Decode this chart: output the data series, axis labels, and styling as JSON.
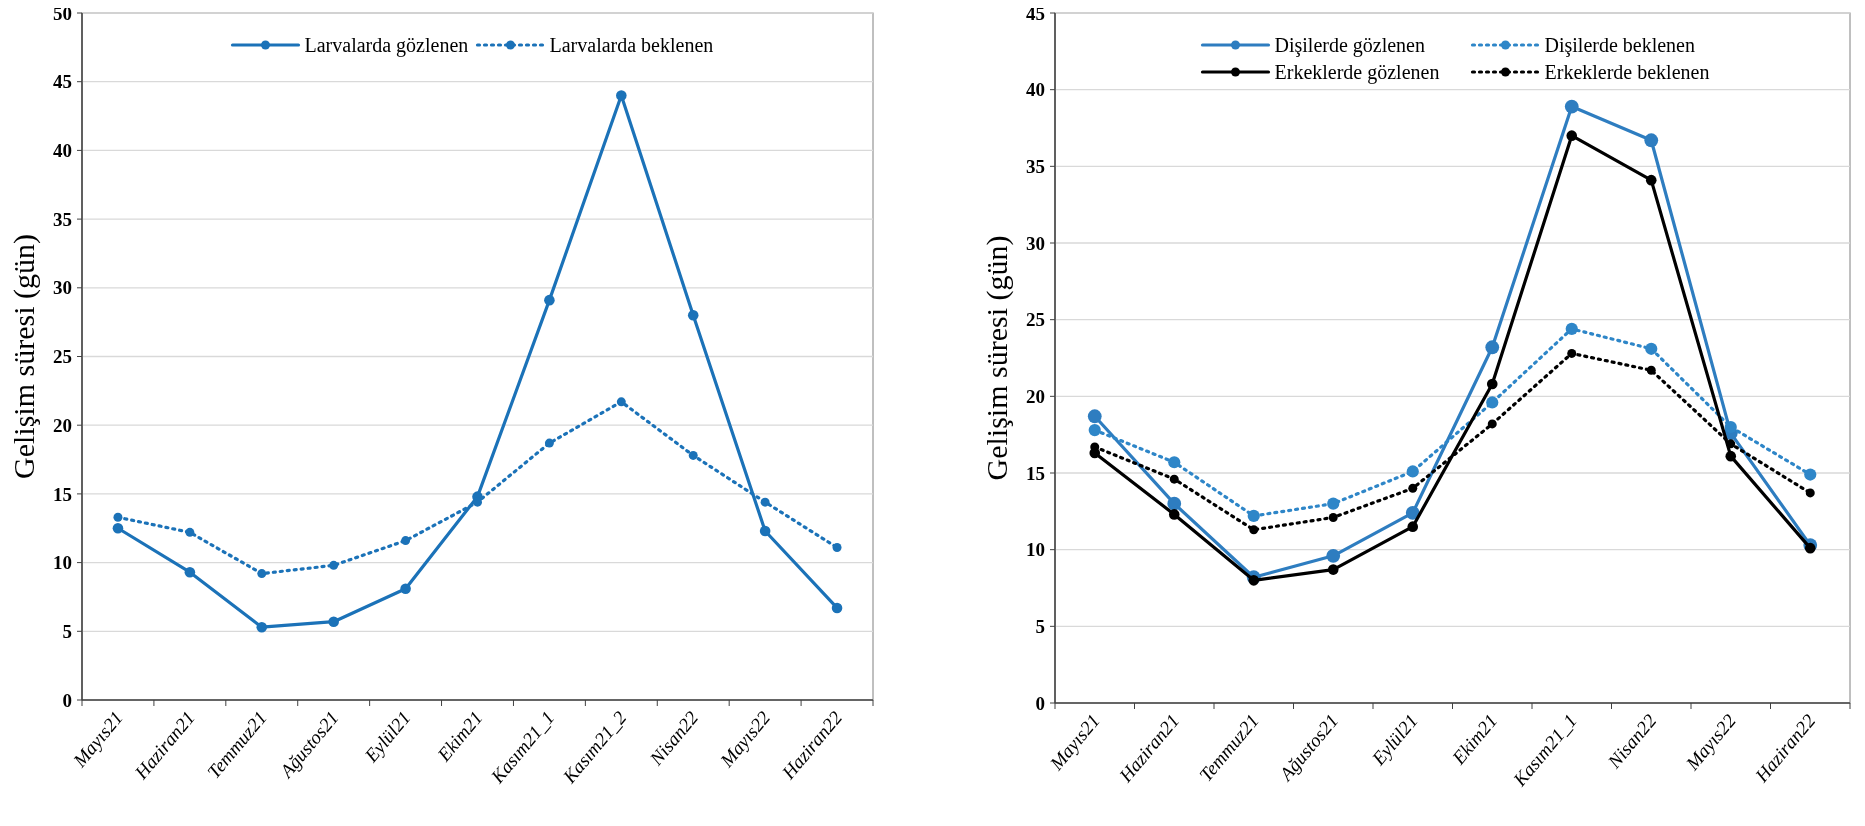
{
  "chart_data": [
    {
      "type": "line",
      "ylabel": "Gelişim süresi (gün)",
      "categories": [
        "Mayıs21",
        "Haziran21",
        "Temmuz21",
        "Ağustos21",
        "Eylül21",
        "Ekim21",
        "Kasım21_1",
        "Kasım21_2",
        "Nisan22",
        "Mayıs22",
        "Haziran22"
      ],
      "ylim": [
        0,
        50
      ],
      "yticks": [
        0,
        5,
        10,
        15,
        20,
        25,
        30,
        35,
        40,
        45,
        50
      ],
      "grid": "y",
      "legend": "top",
      "marker": "circle",
      "series": [
        {
          "name": "Larvalarda gözlenen",
          "color": "#1b72b8",
          "line_style": "solid",
          "values": [
            12.5,
            9.3,
            5.3,
            5.7,
            8.1,
            14.8,
            29.1,
            44,
            28,
            12.3,
            6.7
          ]
        },
        {
          "name": "Larvalarda beklenen",
          "color": "#1b72b8",
          "line_style": "dotted",
          "values": [
            13.3,
            12.2,
            9.2,
            9.8,
            11.6,
            14.4,
            18.7,
            21.7,
            17.8,
            14.4,
            11.1
          ]
        }
      ]
    },
    {
      "type": "line",
      "ylabel": "Gelişim süresi (gün)",
      "categories": [
        "Mayıs21",
        "Haziran21",
        "Temmuz21",
        "Ağustos21",
        "Eylül21",
        "Ekim21",
        "Kasım21_1",
        "Nisan22",
        "Mayıs22",
        "Haziran22"
      ],
      "ylim": [
        0,
        45
      ],
      "yticks": [
        0,
        5,
        10,
        15,
        20,
        25,
        30,
        35,
        40,
        45
      ],
      "grid": "y",
      "legend": "top",
      "marker": "circle",
      "series": [
        {
          "name": "Dişilerde gözlenen",
          "color": "#2e7dc0",
          "line_style": "solid",
          "values": [
            18.7,
            13.0,
            8.2,
            9.6,
            12.4,
            23.2,
            38.9,
            36.7,
            17.6,
            10.3
          ]
        },
        {
          "name": "Dişilerde beklenen",
          "color": "#2e86c8",
          "line_style": "dotted",
          "values": [
            17.8,
            15.7,
            12.2,
            13.0,
            15.1,
            19.6,
            24.4,
            23.1,
            18.0,
            14.9
          ]
        },
        {
          "name": "Erkeklerde gözlenen",
          "color": "#000000",
          "line_style": "solid",
          "values": [
            16.3,
            12.3,
            8.0,
            8.7,
            11.5,
            20.8,
            37.0,
            34.1,
            16.1,
            10.1
          ]
        },
        {
          "name": "Erkeklerde beklenen",
          "color": "#000000",
          "line_style": "dotted",
          "values": [
            16.7,
            14.6,
            11.3,
            12.1,
            14.0,
            18.2,
            22.8,
            21.7,
            16.9,
            13.7
          ]
        }
      ]
    }
  ]
}
